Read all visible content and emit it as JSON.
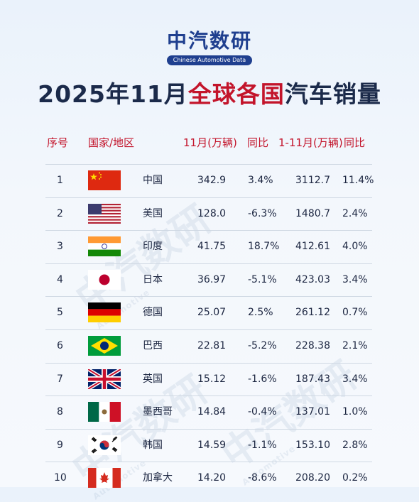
{
  "logo": {
    "main": "中汽数研",
    "sub": "Chinese Automotive Data"
  },
  "title": {
    "year_month": "2025年11月",
    "highlight": "全球各国",
    "rest": "汽车销量"
  },
  "watermark": {
    "main": "中汽数研",
    "sub": "Automotive"
  },
  "headers": {
    "rank": "序号",
    "country": "国家/地区",
    "nov": "11月(万辆)",
    "yoy1": "同比",
    "ytd": "1-11月(万辆)",
    "yoy2": "同比"
  },
  "rows": [
    {
      "rank": "1",
      "country": "中国",
      "flag": "china-flag",
      "nov": "342.9",
      "yoy1": "3.4%",
      "ytd": "3112.7",
      "yoy2": "11.4%"
    },
    {
      "rank": "2",
      "country": "美国",
      "flag": "usa-flag",
      "nov": "128.0",
      "yoy1": "-6.3%",
      "ytd": "1480.7",
      "yoy2": "2.4%"
    },
    {
      "rank": "3",
      "country": "印度",
      "flag": "india-flag",
      "nov": "41.75",
      "yoy1": "18.7%",
      "ytd": "412.61",
      "yoy2": "4.0%"
    },
    {
      "rank": "4",
      "country": "日本",
      "flag": "japan-flag",
      "nov": "36.97",
      "yoy1": "-5.1%",
      "ytd": "423.03",
      "yoy2": "3.4%"
    },
    {
      "rank": "5",
      "country": "德国",
      "flag": "germany-flag",
      "nov": "25.07",
      "yoy1": "2.5%",
      "ytd": "261.12",
      "yoy2": "0.7%"
    },
    {
      "rank": "6",
      "country": "巴西",
      "flag": "brazil-flag",
      "nov": "22.81",
      "yoy1": "-5.2%",
      "ytd": "228.38",
      "yoy2": "2.1%"
    },
    {
      "rank": "7",
      "country": "英国",
      "flag": "uk-flag",
      "nov": "15.12",
      "yoy1": "-1.6%",
      "ytd": "187.43",
      "yoy2": "3.4%"
    },
    {
      "rank": "8",
      "country": "墨西哥",
      "flag": "mexico-flag",
      "nov": "14.84",
      "yoy1": "-0.4%",
      "ytd": "137.01",
      "yoy2": "1.0%"
    },
    {
      "rank": "9",
      "country": "韩国",
      "flag": "korea-flag",
      "nov": "14.59",
      "yoy1": "-1.1%",
      "ytd": "153.10",
      "yoy2": "2.8%"
    },
    {
      "rank": "10",
      "country": "加拿大",
      "flag": "canada-flag",
      "nov": "14.20",
      "yoy1": "-8.6%",
      "ytd": "208.20",
      "yoy2": "0.2%"
    }
  ]
}
